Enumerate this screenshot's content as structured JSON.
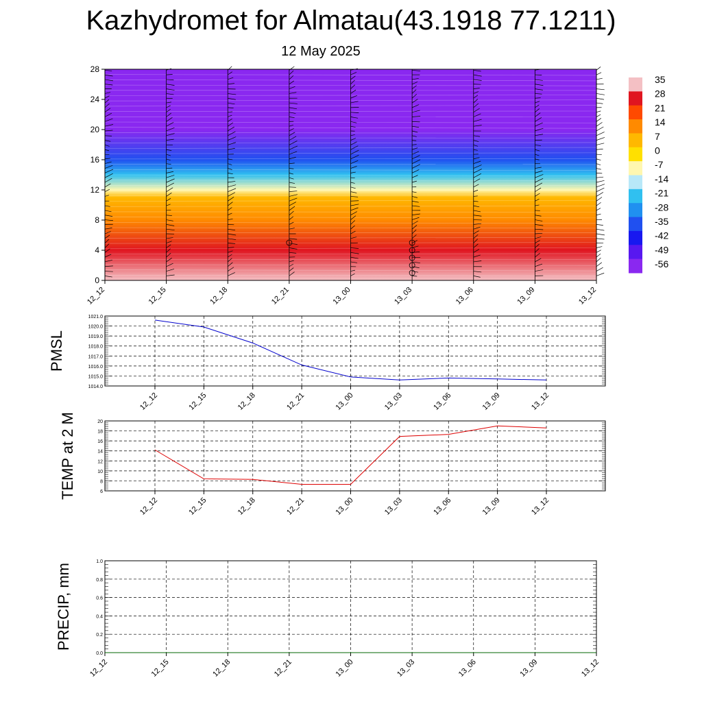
{
  "title": "Kazhydromet for Almatau(43.1918 77.1211)",
  "subtitle": "12 May 2025",
  "chart_data": [
    {
      "type": "heatmap",
      "name": "vertical-cross-section",
      "x_labels": [
        "12_12",
        "12_15",
        "12_18",
        "12_21",
        "13_00",
        "13_03",
        "13_06",
        "13_09",
        "13_12"
      ],
      "y_ticks": [
        "0",
        "4",
        "8",
        "12",
        "16",
        "20",
        "24",
        "28"
      ],
      "ylim": [
        0,
        28
      ],
      "colorbar_labels": [
        "35",
        "28",
        "21",
        "14",
        "7",
        "0",
        "-7",
        "-14",
        "-21",
        "-28",
        "-35",
        "-42",
        "-49",
        "-56"
      ],
      "colorbar_colors": [
        "#f4c0c4",
        "#e01520",
        "#ff4a00",
        "#ff8a00",
        "#ffb800",
        "#ffe000",
        "#fff7b0",
        "#b8e8f8",
        "#30c0f0",
        "#2090f0",
        "#2050f0",
        "#1818f0",
        "#5818f0",
        "#8a28f0"
      ],
      "temperature_profile": [
        {
          "height": 0,
          "value": 30
        },
        {
          "height": 4,
          "value": 21
        },
        {
          "height": 8,
          "value": 12
        },
        {
          "height": 11,
          "value": 0
        },
        {
          "height": 12,
          "value": -14
        },
        {
          "height": 14,
          "value": -28
        },
        {
          "height": 16,
          "value": -38
        },
        {
          "height": 20,
          "value": -56
        },
        {
          "height": 24,
          "value": -60
        },
        {
          "height": 28,
          "value": -62
        }
      ],
      "grid": false
    },
    {
      "type": "line",
      "name": "pmsl",
      "ylabel": "PMSL",
      "categories": [
        "12_12",
        "12_15",
        "12_18",
        "12_21",
        "13_00",
        "13_03",
        "13_06",
        "13_09",
        "13_12"
      ],
      "series": [
        {
          "values": [
            1020.6,
            1019.9,
            1018.3,
            1016.1,
            1014.9,
            1014.6,
            1014.8,
            1014.7,
            1014.6
          ],
          "color": "#0000cc"
        }
      ],
      "y_ticks": [
        "1014.0",
        "1015.0",
        "1016.0",
        "1017.0",
        "1018.0",
        "1019.0",
        "1020.0",
        "1021.0"
      ],
      "ylim": [
        1014,
        1021
      ],
      "grid": true
    },
    {
      "type": "line",
      "name": "temp-2m",
      "ylabel": "TEMP at 2 M",
      "categories": [
        "12_12",
        "12_15",
        "12_18",
        "12_21",
        "13_00",
        "13_03",
        "13_06",
        "13_09",
        "13_12"
      ],
      "series": [
        {
          "values": [
            14.2,
            8.4,
            8.3,
            7.3,
            7.3,
            16.9,
            17.3,
            19.0,
            18.6
          ],
          "color": "#dd0000"
        }
      ],
      "y_ticks": [
        "6",
        "8",
        "10",
        "12",
        "14",
        "16",
        "18",
        "20"
      ],
      "ylim": [
        6,
        20
      ],
      "grid": true
    },
    {
      "type": "line",
      "name": "precip",
      "ylabel": "PRECIP, mm",
      "x_labels": [
        "12_12",
        "12_15",
        "12_18",
        "12_21",
        "13_00",
        "13_03",
        "13_06",
        "13_09",
        "13_12"
      ],
      "series": [
        {
          "values": [
            0,
            0,
            0,
            0,
            0,
            0,
            0,
            0,
            0
          ],
          "color": "#006400"
        }
      ],
      "y_ticks": [
        "0.0",
        "0.2",
        "0.4",
        "0.6",
        "0.8",
        "1.0"
      ],
      "ylim": [
        0,
        1
      ],
      "grid": true
    }
  ]
}
